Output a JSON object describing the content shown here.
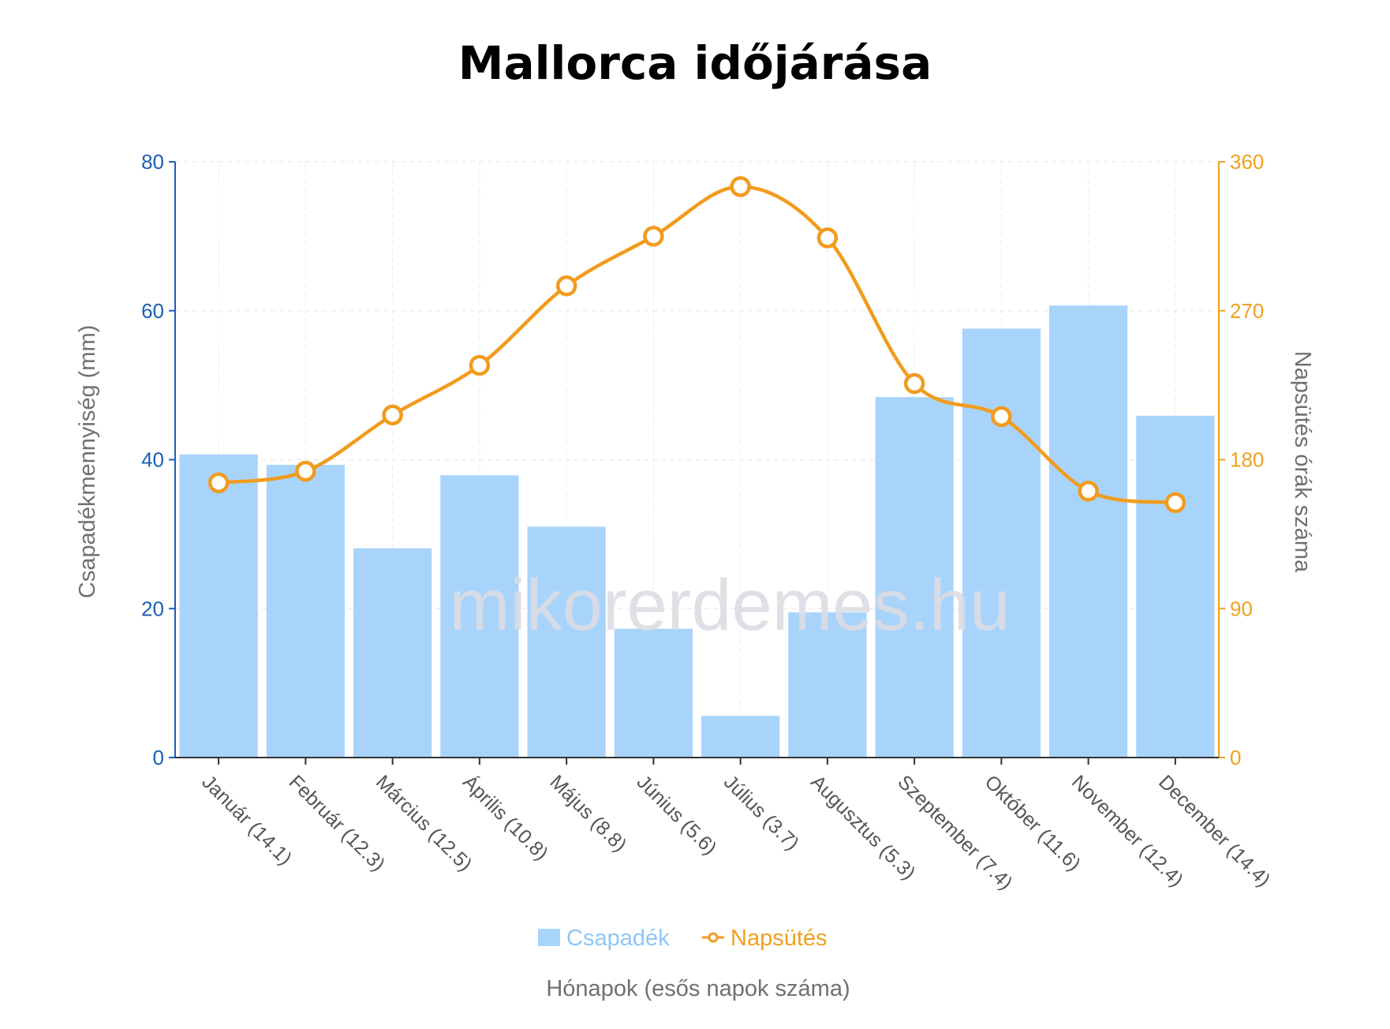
{
  "chart_data": {
    "type": "bar",
    "title": "Mallorca időjárása",
    "xlabel": "Hónapok (esős napok száma)",
    "ylabel": "Csapadékmennyiség (mm)",
    "y2label": "Napsütés órák száma",
    "categories": [
      "Január (14.1)",
      "Február (12.3)",
      "Március (12.5)",
      "Április (10.8)",
      "Május (8.8)",
      "Június (5.6)",
      "Július (3.7)",
      "Augusztus (5.3)",
      "Szeptember (7.4)",
      "Október (11.6)",
      "November (12.4)",
      "December (14.4)"
    ],
    "ylim": [
      0,
      80
    ],
    "yticks": [
      "0",
      "20",
      "40",
      "60",
      "80"
    ],
    "y2lim": [
      0,
      360
    ],
    "y2ticks": [
      "0",
      "90",
      "180",
      "270",
      "360"
    ],
    "grid": true,
    "legend_position": "bottom-center",
    "series": [
      {
        "name": "Csapadék",
        "type": "bar",
        "axis": "left",
        "color": "#a8d4fb",
        "values": [
          40.7,
          39.3,
          28.1,
          37.9,
          31.0,
          17.3,
          5.6,
          19.5,
          48.4,
          57.6,
          60.7,
          45.9
        ]
      },
      {
        "name": "Napsütés",
        "type": "line",
        "axis": "right",
        "color": "#f29b1d",
        "values": [
          166,
          173,
          207,
          237,
          285,
          315,
          345,
          314,
          226,
          206,
          161,
          154
        ]
      }
    ]
  },
  "watermark": "mikorerdemes.hu",
  "colors": {
    "left_axis": "#1a5fb4",
    "right_axis": "#f0a020",
    "bar": "#a8d4fb",
    "line": "#f29b1d",
    "legend_bar_text": "#8ec7f8",
    "legend_line_text": "#f0a020"
  }
}
